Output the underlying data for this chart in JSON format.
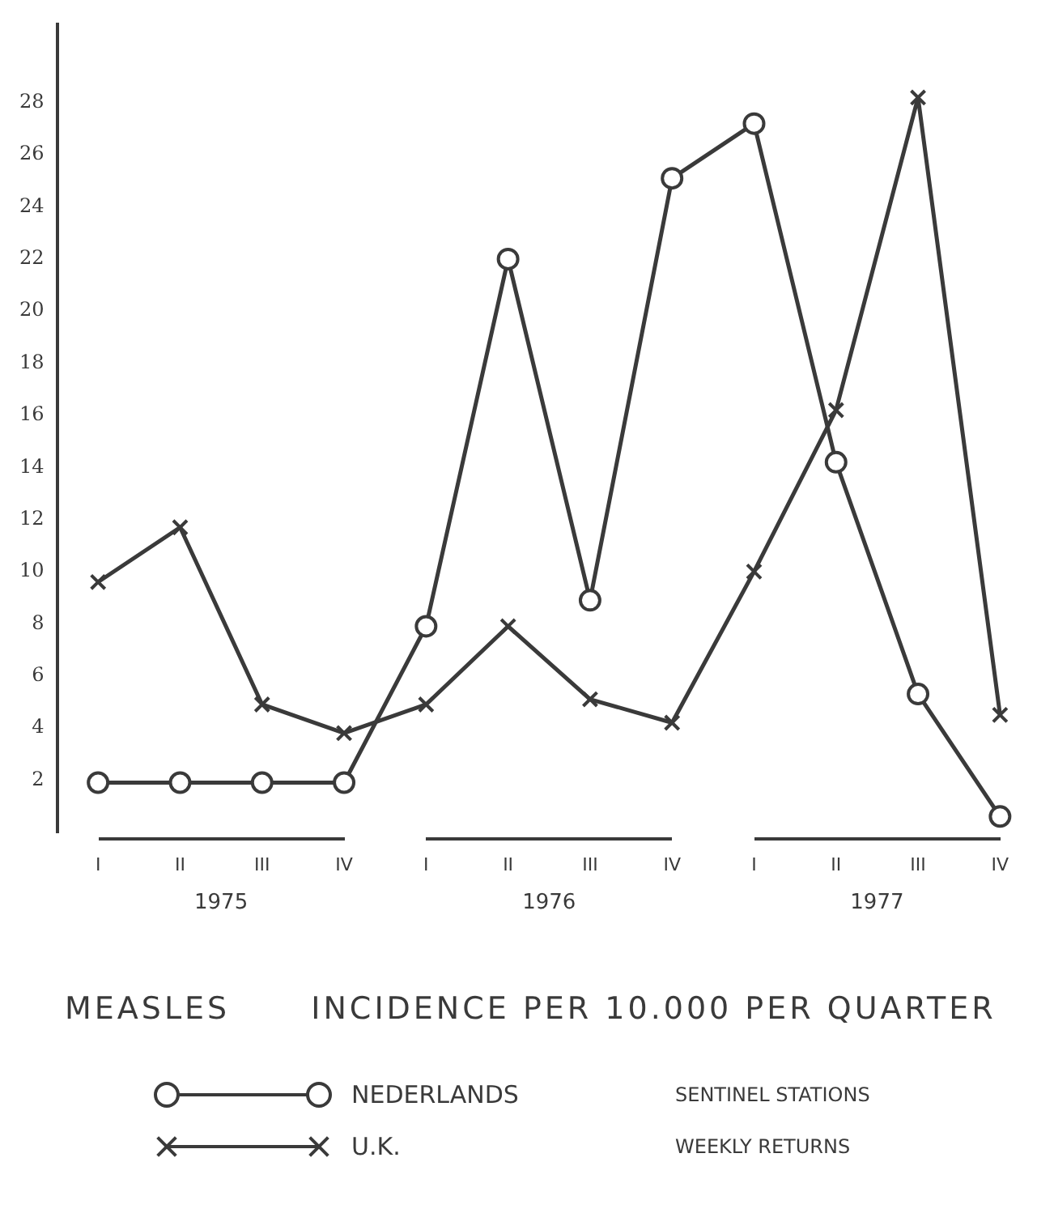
{
  "chart_data": {
    "type": "line",
    "title": "MEASLES",
    "subtitle": "INCIDENCE PER 10.000 PER QUARTER",
    "categories": [
      "I",
      "II",
      "III",
      "IV",
      "I",
      "II",
      "III",
      "IV",
      "I",
      "II",
      "III",
      "IV"
    ],
    "series": [
      {
        "name": "NEDERLANDS",
        "color": "#3a3a3a",
        "marker": "circle",
        "values": [
          1.9,
          1.9,
          1.9,
          1.9,
          7.9,
          22,
          8.9,
          25.1,
          27.2,
          14.2,
          5.3,
          0.6
        ]
      },
      {
        "name": "U.K.",
        "color": "#3a3a3a",
        "marker": "cross",
        "values": [
          9.6,
          11.7,
          4.9,
          3.8,
          4.9,
          7.9,
          5.1,
          4.2,
          10,
          16.2,
          28.2,
          4.5
        ]
      }
    ],
    "ylim": [
      0,
      31
    ],
    "yticks": [
      2,
      4,
      6,
      8,
      10,
      12,
      14,
      16,
      18,
      20,
      22,
      24,
      26,
      28
    ],
    "grid": false,
    "legend": "bottom",
    "annotations": [
      "1975",
      "1976",
      "1977",
      "SENTINEL STATIONS",
      "WEEKLY RETURNS"
    ]
  }
}
